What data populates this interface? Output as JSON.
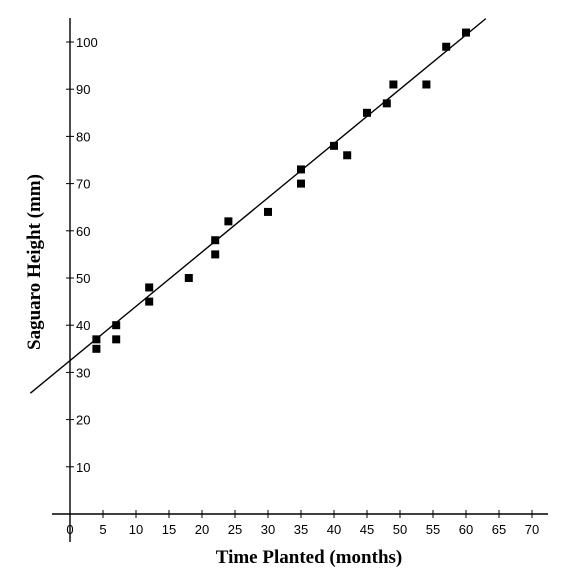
{
  "chart_data": {
    "type": "scatter",
    "title": "",
    "xlabel": "Time Planted (months)",
    "ylabel": "Saguaro Height (mm)",
    "xlim": [
      0,
      70
    ],
    "ylim": [
      0,
      100
    ],
    "x_ticks": [
      0,
      5,
      10,
      15,
      20,
      25,
      30,
      35,
      40,
      45,
      50,
      55,
      60,
      65,
      70
    ],
    "y_ticks": [
      10,
      20,
      30,
      40,
      50,
      60,
      70,
      80,
      90,
      100
    ],
    "grid": false,
    "legend": "none",
    "marker": "square",
    "marker_color": "#000000",
    "points": [
      {
        "x": 4,
        "y": 35
      },
      {
        "x": 4,
        "y": 37
      },
      {
        "x": 7,
        "y": 37
      },
      {
        "x": 7,
        "y": 40
      },
      {
        "x": 12,
        "y": 45
      },
      {
        "x": 12,
        "y": 48
      },
      {
        "x": 18,
        "y": 50
      },
      {
        "x": 22,
        "y": 55
      },
      {
        "x": 22,
        "y": 58
      },
      {
        "x": 24,
        "y": 62
      },
      {
        "x": 30,
        "y": 64
      },
      {
        "x": 35,
        "y": 70
      },
      {
        "x": 35,
        "y": 73
      },
      {
        "x": 40,
        "y": 78
      },
      {
        "x": 42,
        "y": 76
      },
      {
        "x": 45,
        "y": 85
      },
      {
        "x": 48,
        "y": 87
      },
      {
        "x": 49,
        "y": 91
      },
      {
        "x": 54,
        "y": 91
      },
      {
        "x": 57,
        "y": 99
      },
      {
        "x": 60,
        "y": 102
      }
    ],
    "trend_line": {
      "slope": 1.15,
      "intercept": 32.5
    }
  }
}
